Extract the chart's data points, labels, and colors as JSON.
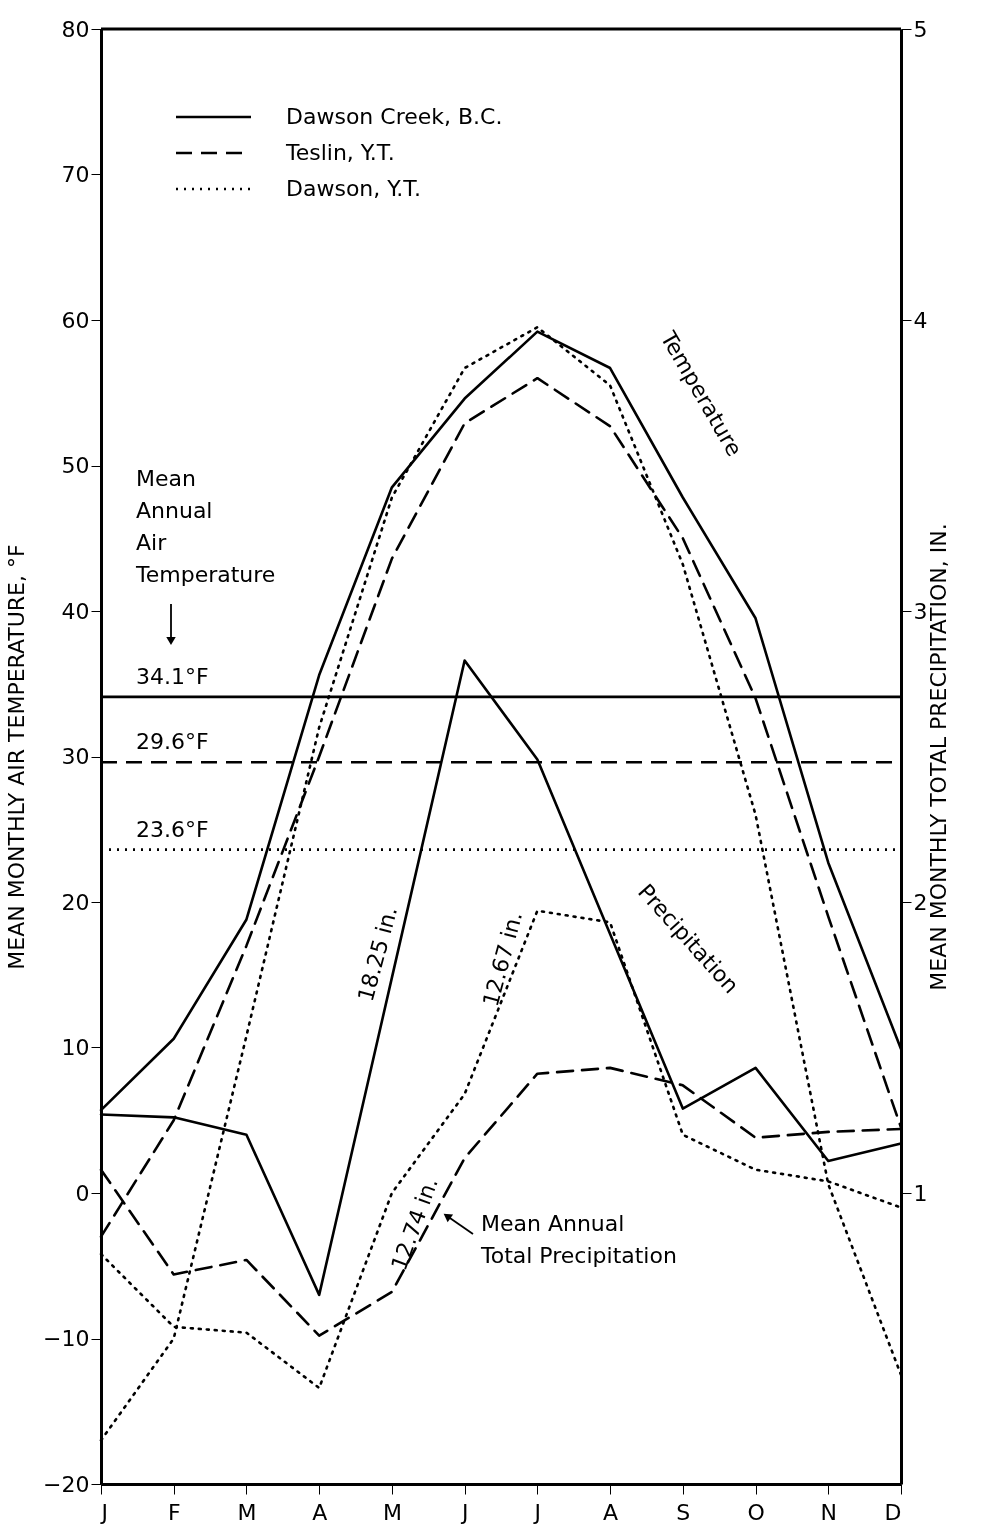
{
  "chart_data": {
    "type": "line",
    "categories": [
      "J",
      "F",
      "M",
      "A",
      "M",
      "J",
      "J",
      "A",
      "S",
      "O",
      "N",
      "D"
    ],
    "ylabel": "MEAN MONTHLY AIR TEMPERATURE, °F",
    "y2label": "MEAN MONTHLY TOTAL PRECIPITATION, IN.",
    "ylim": [
      -20,
      80
    ],
    "yticks": [
      -20,
      -10,
      0,
      10,
      20,
      30,
      40,
      50,
      60,
      70,
      80
    ],
    "y2lim": [
      0,
      5
    ],
    "y2ticks": [
      1,
      2,
      3,
      4,
      5
    ],
    "legend": "top left",
    "grid": false,
    "series": [
      {
        "name": "Dawson Creek, B.C.",
        "color": "#000000",
        "line_style": "solid",
        "values": [
          5.7,
          10.6,
          18.8,
          35.6,
          48.5,
          54.6,
          59.2,
          56.7,
          47.8,
          39.5,
          22.7,
          9.9
        ]
      },
      {
        "name": "Teslin, Y.T.",
        "color": "#000000",
        "line_style": "dashed",
        "values": [
          -3,
          5,
          17,
          30,
          43.6,
          52.9,
          56,
          52.7,
          45,
          34,
          19,
          4.5
        ]
      },
      {
        "name": "Dawson, Y.T.",
        "color": "#000000",
        "line_style": "dotted",
        "values": [
          -17,
          -10,
          10.8,
          32,
          47.8,
          56.7,
          59.5,
          55.5,
          43.2,
          26,
          0.6,
          -12.5
        ]
      },
      {
        "color": "#000000",
        "line_style": "solid",
        "axis": "y2",
        "values": [
          1.27,
          1.26,
          1.2,
          0.65,
          1.74,
          2.83,
          2.49,
          1.89,
          1.29,
          1.43,
          1.11,
          1.17
        ]
      },
      {
        "color": "#000000",
        "line_style": "dashed",
        "axis": "y2",
        "values": [
          1.08,
          0.72,
          0.77,
          0.51,
          0.66,
          1.12,
          1.41,
          1.43,
          1.37,
          1.19,
          1.21,
          1.22
        ]
      },
      {
        "color": "#000000",
        "line_style": "dotted",
        "axis": "y2",
        "values": [
          0.79,
          0.54,
          0.52,
          0.33,
          1.0,
          1.34,
          1.97,
          1.93,
          1.2,
          1.08,
          1.04,
          0.95
        ]
      }
    ],
    "ref_lines": [
      {
        "axis": "y",
        "value": 34.1,
        "label": "34.1°F",
        "line_style": "solid",
        "color": "#000000"
      },
      {
        "axis": "y",
        "value": 29.6,
        "label": "29.6°F",
        "line_style": "dashed",
        "color": "#000000"
      },
      {
        "axis": "y",
        "value": 23.6,
        "label": "23.6°F",
        "line_style": "dotted",
        "color": "#000000"
      }
    ],
    "annotations": [
      "Mean Annual Air Temperature",
      "Temperature",
      "Precipitation",
      "18.25 in.",
      "12.67 in.",
      "12.74 in.",
      "Mean Annual Total Precipitation"
    ]
  }
}
